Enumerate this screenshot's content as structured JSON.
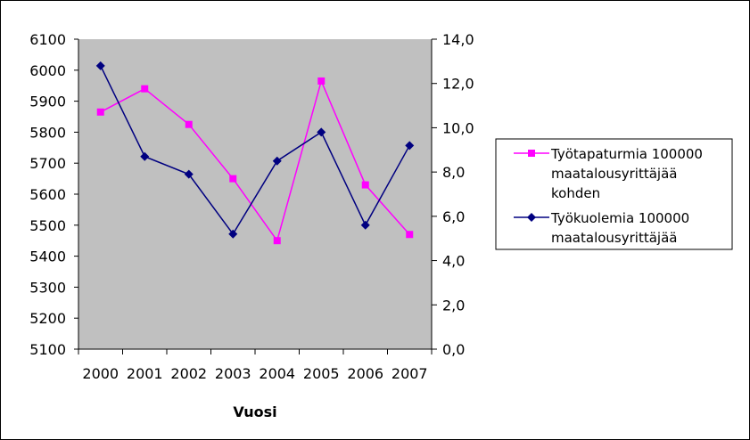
{
  "chart_data": {
    "type": "line",
    "title": "",
    "xlabel": "Vuosi",
    "categories": [
      "2000",
      "2001",
      "2002",
      "2003",
      "2004",
      "2005",
      "2006",
      "2007"
    ],
    "y_left": {
      "ylim": [
        5100,
        6100
      ],
      "ticks": [
        "6100",
        "6000",
        "5900",
        "5800",
        "5700",
        "5600",
        "5500",
        "5400",
        "5300",
        "5200",
        "5100"
      ]
    },
    "y_right": {
      "ylim": [
        0,
        14
      ],
      "ticks": [
        "14,0",
        "12,0",
        "10,0",
        "8,0",
        "6,0",
        "4,0",
        "2,0",
        "0,0"
      ]
    },
    "series": [
      {
        "name": "Työtapaturmia 100000 maatalousyrittäjää kohden",
        "axis": "left",
        "color": "#FF00FF",
        "marker": "square",
        "values": [
          5865,
          5940,
          5825,
          5650,
          5450,
          5965,
          5630,
          5470
        ]
      },
      {
        "name": "Työkuolemia 100000 maatalousyrittäjää",
        "axis": "right",
        "color": "#000080",
        "marker": "diamond",
        "values": [
          12.8,
          8.7,
          7.9,
          5.2,
          8.5,
          9.8,
          5.6,
          9.2
        ]
      }
    ],
    "legend": {
      "placement": "right",
      "lines": [
        [
          "Työtapaturmia 100000",
          "maatalousyrittäjää",
          "kohden"
        ],
        [
          "Työkuolemia 100000",
          "maatalousyrittäjää"
        ]
      ]
    },
    "plot_background": "#C0C0C0",
    "grid": false
  }
}
